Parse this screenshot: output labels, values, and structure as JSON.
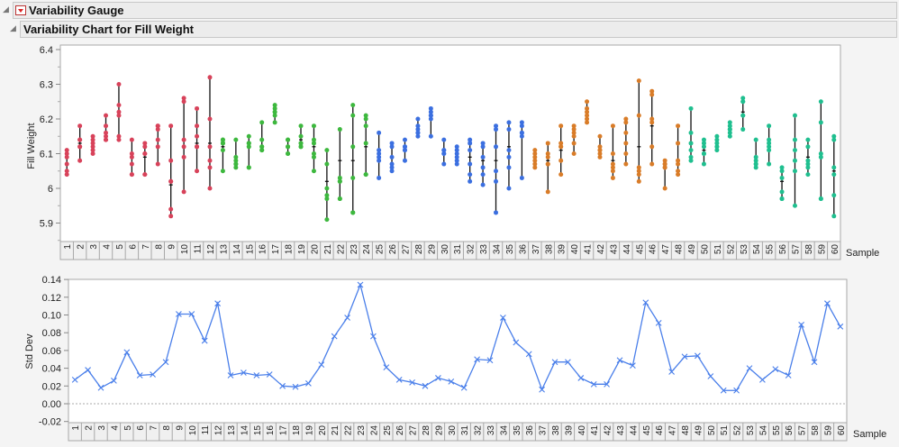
{
  "header": {
    "title": "Variability Gauge",
    "subtitle": "Variability Chart for Fill Weight"
  },
  "colors": {
    "group1": "#D8425A",
    "group2": "#3DB83E",
    "group3": "#3B6FE0",
    "group4": "#D97C28",
    "group5": "#1FBF8F",
    "stddev_line": "#4A7FEA",
    "range_bar": "#111111"
  },
  "chart_data": [
    {
      "type": "scatter",
      "title": "Variability Chart for Fill Weight",
      "xlabel": "Sample",
      "ylabel": "Fill Weight",
      "ylim": [
        5.85,
        6.4
      ],
      "yticks": [
        5.9,
        6,
        6.1,
        6.2,
        6.3,
        6.4
      ],
      "ytick_labels": [
        "5.9",
        "6",
        "6.1",
        "6.2",
        "6.3",
        "6.4"
      ],
      "categories": [
        "1",
        "2",
        "3",
        "4",
        "5",
        "6",
        "7",
        "8",
        "9",
        "10",
        "11",
        "12",
        "13",
        "14",
        "15",
        "16",
        "17",
        "18",
        "19",
        "20",
        "21",
        "22",
        "23",
        "24",
        "25",
        "26",
        "27",
        "28",
        "29",
        "30",
        "31",
        "32",
        "33",
        "34",
        "35",
        "36",
        "37",
        "38",
        "39",
        "40",
        "41",
        "42",
        "43",
        "44",
        "45",
        "46",
        "47",
        "48",
        "49",
        "50",
        "51",
        "52",
        "53",
        "54",
        "55",
        "56",
        "57",
        "58",
        "59",
        "60"
      ],
      "grid": false,
      "points": [
        [
          6.04,
          6.05,
          6.07,
          6.09,
          6.1,
          6.11
        ],
        [
          6.08,
          6.12,
          6.14,
          6.18,
          6.12,
          6.14
        ],
        [
          6.1,
          6.12,
          6.13,
          6.14,
          6.15,
          6.11
        ],
        [
          6.14,
          6.15,
          6.16,
          6.18,
          6.21,
          6.14
        ],
        [
          6.14,
          6.15,
          6.21,
          6.22,
          6.24,
          6.3
        ],
        [
          6.04,
          6.07,
          6.09,
          6.1,
          6.14,
          6.04
        ],
        [
          6.04,
          6.1,
          6.12,
          6.13,
          6.1,
          6.04
        ],
        [
          6.07,
          6.12,
          6.14,
          6.17,
          6.18,
          6.18
        ],
        [
          5.92,
          5.94,
          6.02,
          6.08,
          6.18,
          6.02
        ],
        [
          5.99,
          6.09,
          6.12,
          6.14,
          6.25,
          6.26
        ],
        [
          6.05,
          6.12,
          6.15,
          6.18,
          6.23,
          6.12
        ],
        [
          6.0,
          6.06,
          6.08,
          6.12,
          6.2,
          6.32
        ],
        [
          6.05,
          6.11,
          6.13,
          6.14,
          6.14,
          6.13
        ],
        [
          6.06,
          6.07,
          6.08,
          6.09,
          6.14,
          6.07
        ],
        [
          6.06,
          6.12,
          6.13,
          6.15,
          6.13,
          6.06
        ],
        [
          6.11,
          6.12,
          6.14,
          6.19,
          6.12,
          6.11
        ],
        [
          6.19,
          6.21,
          6.22,
          6.23,
          6.24,
          6.22
        ],
        [
          6.1,
          6.12,
          6.14,
          6.1,
          6.12,
          6.14
        ],
        [
          6.12,
          6.13,
          6.15,
          6.18,
          6.13,
          6.12
        ],
        [
          6.05,
          6.09,
          6.1,
          6.13,
          6.14,
          6.18
        ],
        [
          5.91,
          5.97,
          5.98,
          6.0,
          6.07,
          6.11
        ],
        [
          5.97,
          6.02,
          6.03,
          6.17,
          5.97,
          6.02
        ],
        [
          5.93,
          6.03,
          6.12,
          6.21,
          6.24,
          5.93
        ],
        [
          6.04,
          6.13,
          6.18,
          6.2,
          6.21,
          6.04
        ],
        [
          6.03,
          6.08,
          6.1,
          6.11,
          6.16,
          6.09
        ],
        [
          6.05,
          6.06,
          6.07,
          6.09,
          6.12,
          6.13
        ],
        [
          6.08,
          6.11,
          6.12,
          6.14,
          6.11,
          6.12
        ],
        [
          6.15,
          6.16,
          6.17,
          6.18,
          6.2,
          6.16
        ],
        [
          6.15,
          6.2,
          6.21,
          6.22,
          6.23,
          6.21
        ],
        [
          6.07,
          6.1,
          6.11,
          6.14,
          6.1,
          6.11
        ],
        [
          6.07,
          6.08,
          6.09,
          6.1,
          6.11,
          6.12
        ],
        [
          6.02,
          6.04,
          6.07,
          6.11,
          6.13,
          6.14
        ],
        [
          6.01,
          6.04,
          6.06,
          6.09,
          6.12,
          6.13
        ],
        [
          5.93,
          6.02,
          6.05,
          6.12,
          6.17,
          6.18
        ],
        [
          6.0,
          6.06,
          6.09,
          6.11,
          6.17,
          6.19
        ],
        [
          6.03,
          6.15,
          6.16,
          6.18,
          6.19,
          6.16
        ],
        [
          6.06,
          6.07,
          6.08,
          6.09,
          6.1,
          6.11
        ],
        [
          5.99,
          6.07,
          6.09,
          6.1,
          6.13,
          6.07
        ],
        [
          6.04,
          6.08,
          6.12,
          6.13,
          6.18,
          6.12
        ],
        [
          6.1,
          6.13,
          6.15,
          6.16,
          6.17,
          6.18
        ],
        [
          6.19,
          6.2,
          6.22,
          6.23,
          6.25,
          6.21
        ],
        [
          6.09,
          6.1,
          6.11,
          6.12,
          6.15,
          6.11
        ],
        [
          6.03,
          6.05,
          6.06,
          6.07,
          6.1,
          6.18
        ],
        [
          6.07,
          6.1,
          6.13,
          6.16,
          6.19,
          6.2
        ],
        [
          6.02,
          6.04,
          6.05,
          6.06,
          6.21,
          6.31
        ],
        [
          6.07,
          6.12,
          6.19,
          6.2,
          6.27,
          6.28
        ],
        [
          6.0,
          6.06,
          6.07,
          6.08,
          6.06,
          6.07
        ],
        [
          6.04,
          6.05,
          6.07,
          6.08,
          6.13,
          6.18
        ],
        [
          6.08,
          6.09,
          6.11,
          6.13,
          6.16,
          6.23
        ],
        [
          6.07,
          6.1,
          6.12,
          6.13,
          6.14,
          6.1
        ],
        [
          6.11,
          6.12,
          6.13,
          6.14,
          6.15,
          6.12
        ],
        [
          6.15,
          6.16,
          6.17,
          6.18,
          6.19,
          6.17
        ],
        [
          6.17,
          6.21,
          6.25,
          6.26,
          6.21,
          6.25
        ],
        [
          6.06,
          6.07,
          6.08,
          6.09,
          6.14,
          6.07
        ],
        [
          6.07,
          6.11,
          6.12,
          6.13,
          6.14,
          6.18
        ],
        [
          5.97,
          5.99,
          6.03,
          6.05,
          6.06,
          5.97
        ],
        [
          5.95,
          6.05,
          6.08,
          6.11,
          6.14,
          6.21
        ],
        [
          6.04,
          6.06,
          6.07,
          6.08,
          6.12,
          6.14
        ],
        [
          5.97,
          6.09,
          6.1,
          6.19,
          6.25,
          5.97
        ],
        [
          5.92,
          5.98,
          6.04,
          6.06,
          6.14,
          6.15
        ]
      ],
      "means": [
        6.07,
        6.13,
        6.13,
        6.16,
        6.22,
        6.09,
        6.09,
        6.14,
        6.01,
        6.14,
        6.13,
        6.13,
        6.12,
        6.08,
        6.12,
        6.14,
        6.22,
        6.12,
        6.14,
        6.12,
        6.02,
        6.08,
        6.08,
        6.12,
        6.1,
        6.09,
        6.11,
        6.17,
        6.21,
        6.11,
        6.09,
        6.09,
        6.08,
        6.08,
        6.12,
        6.15,
        6.09,
        6.08,
        6.11,
        6.15,
        6.21,
        6.11,
        6.08,
        6.1,
        6.12,
        6.18,
        6.06,
        6.08,
        6.13,
        6.11,
        6.13,
        6.17,
        6.22,
        6.08,
        6.12,
        6.02,
        6.08,
        6.09,
        6.09,
        6.05
      ],
      "groups": [
        "group1",
        "group1",
        "group1",
        "group1",
        "group1",
        "group1",
        "group1",
        "group1",
        "group1",
        "group1",
        "group1",
        "group1",
        "group2",
        "group2",
        "group2",
        "group2",
        "group2",
        "group2",
        "group2",
        "group2",
        "group2",
        "group2",
        "group2",
        "group2",
        "group3",
        "group3",
        "group3",
        "group3",
        "group3",
        "group3",
        "group3",
        "group3",
        "group3",
        "group3",
        "group3",
        "group3",
        "group4",
        "group4",
        "group4",
        "group4",
        "group4",
        "group4",
        "group4",
        "group4",
        "group4",
        "group4",
        "group4",
        "group4",
        "group5",
        "group5",
        "group5",
        "group5",
        "group5",
        "group5",
        "group5",
        "group5",
        "group5",
        "group5",
        "group5",
        "group5"
      ]
    },
    {
      "type": "line",
      "title": "Std Dev",
      "xlabel": "Sample",
      "ylabel": "Std Dev",
      "ylim": [
        -0.02,
        0.14
      ],
      "yticks": [
        -0.02,
        0.0,
        0.02,
        0.04,
        0.06,
        0.08,
        0.1,
        0.12,
        0.14
      ],
      "ytick_labels": [
        "-0.02",
        "0.00",
        "0.02",
        "0.04",
        "0.06",
        "0.08",
        "0.10",
        "0.12",
        "0.14"
      ],
      "reference_line": 0.0,
      "categories": [
        "1",
        "2",
        "3",
        "4",
        "5",
        "6",
        "7",
        "8",
        "9",
        "10",
        "11",
        "12",
        "13",
        "14",
        "15",
        "16",
        "17",
        "18",
        "19",
        "20",
        "21",
        "22",
        "23",
        "24",
        "25",
        "26",
        "27",
        "28",
        "29",
        "30",
        "31",
        "32",
        "33",
        "34",
        "35",
        "36",
        "37",
        "38",
        "39",
        "40",
        "41",
        "42",
        "43",
        "44",
        "45",
        "46",
        "47",
        "48",
        "49",
        "50",
        "51",
        "52",
        "53",
        "54",
        "55",
        "56",
        "57",
        "58",
        "59",
        "60"
      ],
      "values": [
        0.027,
        0.038,
        0.018,
        0.026,
        0.058,
        0.032,
        0.033,
        0.047,
        0.101,
        0.101,
        0.071,
        0.113,
        0.032,
        0.035,
        0.032,
        0.033,
        0.02,
        0.019,
        0.023,
        0.044,
        0.076,
        0.097,
        0.134,
        0.076,
        0.041,
        0.027,
        0.024,
        0.02,
        0.029,
        0.025,
        0.018,
        0.05,
        0.049,
        0.097,
        0.069,
        0.056,
        0.016,
        0.047,
        0.047,
        0.029,
        0.022,
        0.022,
        0.049,
        0.043,
        0.114,
        0.091,
        0.036,
        0.053,
        0.054,
        0.031,
        0.015,
        0.015,
        0.04,
        0.027,
        0.039,
        0.032,
        0.089,
        0.047,
        0.113,
        0.087
      ],
      "marker": "x"
    }
  ]
}
